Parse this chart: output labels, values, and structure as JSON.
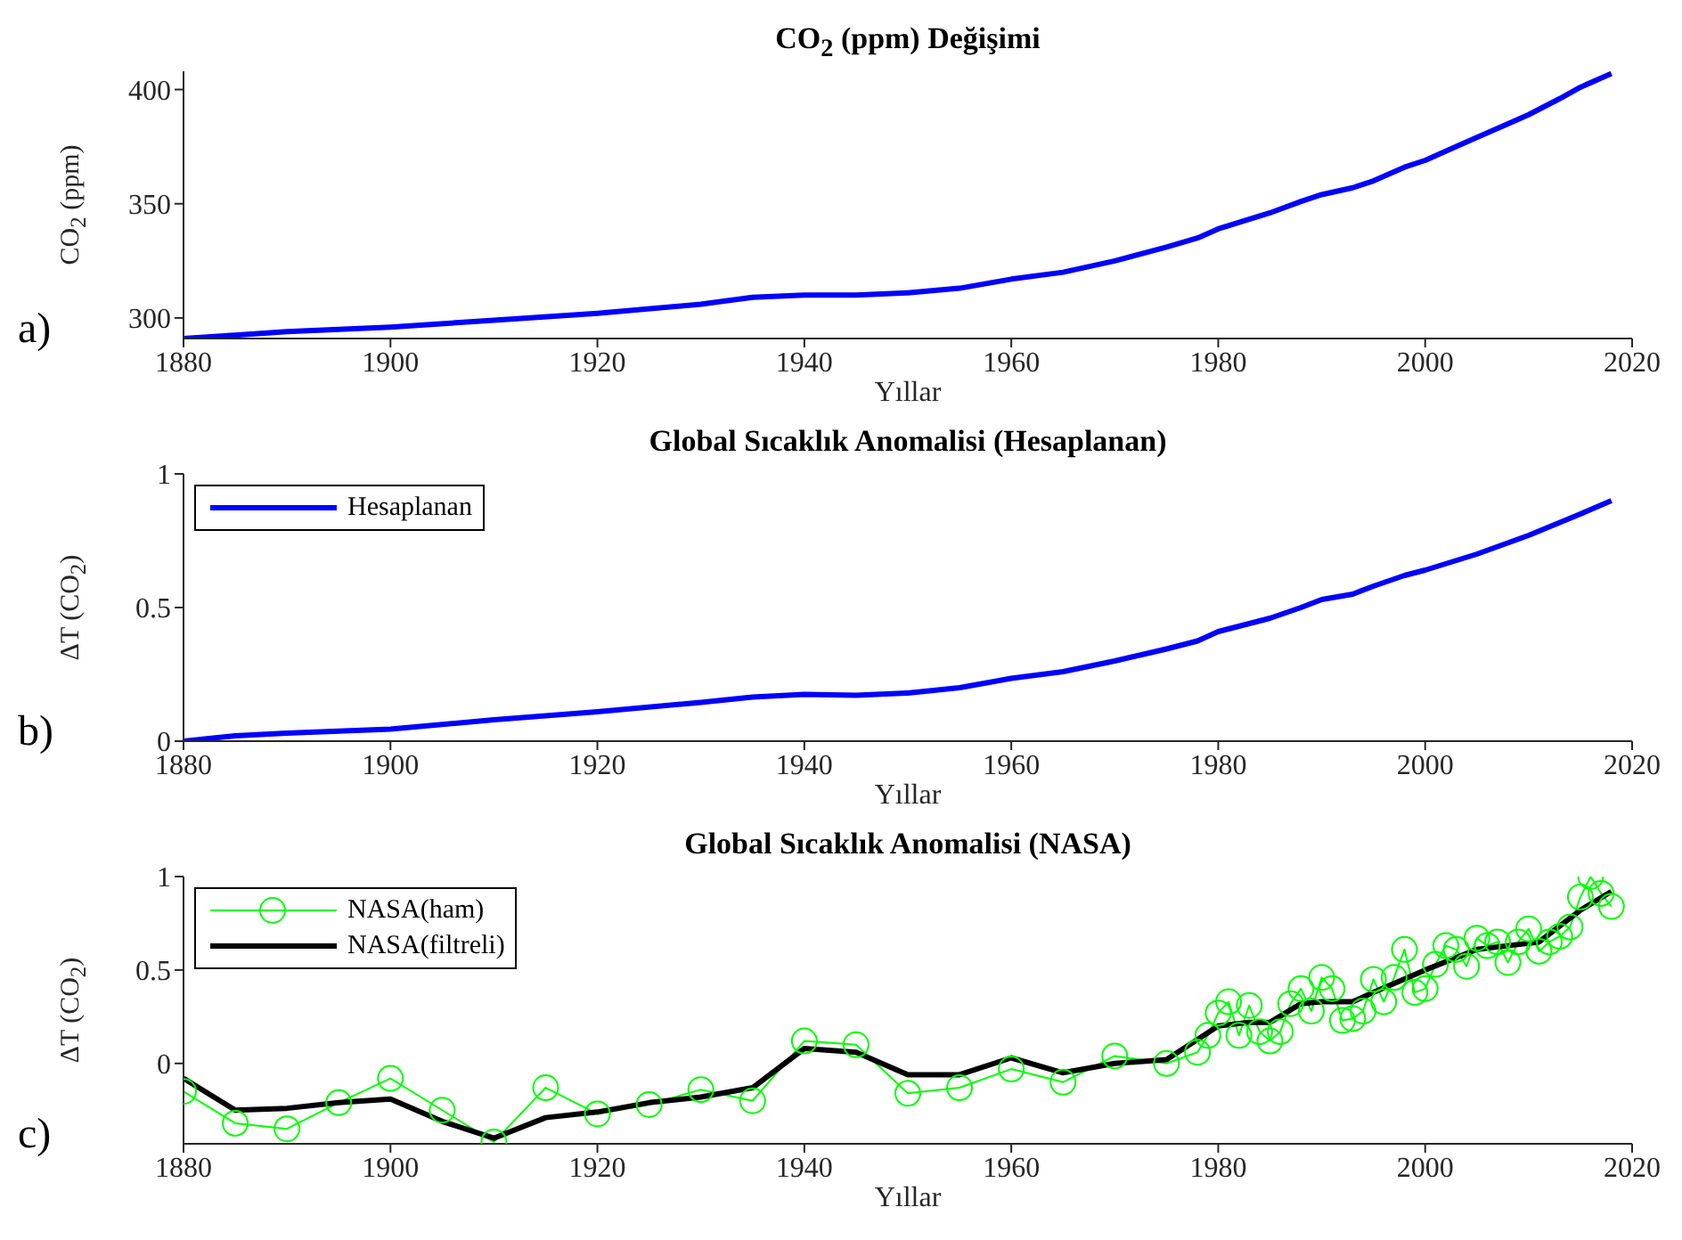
{
  "chart_data": [
    {
      "type": "line",
      "title": "CO$_{2}$ (ppm) Değişimi",
      "xlabel": "Yıllar",
      "ylabel": "CO$_{2}$ (ppm)",
      "annotations": [
        "a)"
      ],
      "xlim": [
        1880,
        2020
      ],
      "xticks": [
        1880,
        1900,
        1920,
        1940,
        1960,
        1980,
        2000,
        2020
      ],
      "ylim": [
        291,
        408
      ],
      "yticks": [
        300,
        350,
        400
      ],
      "series": [
        {
          "color": "#0000ff",
          "marker": "none",
          "x": [
            1880,
            1885,
            1890,
            1900,
            1910,
            1920,
            1930,
            1935,
            1940,
            1945,
            1950,
            1955,
            1960,
            1965,
            1970,
            1975,
            1978,
            1980,
            1985,
            1988,
            1990,
            1993,
            1995,
            1998,
            2000,
            2003,
            2005,
            2008,
            2010,
            2013,
            2015,
            2018
          ],
          "values": [
            291,
            292.5,
            294,
            296,
            299,
            302,
            306,
            309,
            310,
            310,
            311,
            313,
            317,
            320,
            325,
            331,
            335,
            339,
            346,
            351,
            354,
            357,
            360,
            366,
            369,
            375,
            379,
            385,
            389,
            396,
            401,
            407
          ]
        }
      ]
    },
    {
      "type": "line",
      "title": "Global Sıcaklık Anomalisi (Hesaplanan)",
      "xlabel": "Yıllar",
      "ylabel": "ΔT (CO$_{2}$)",
      "annotations": [
        "b)"
      ],
      "xlim": [
        1880,
        2020
      ],
      "xticks": [
        1880,
        1900,
        1920,
        1940,
        1960,
        1980,
        2000,
        2020
      ],
      "ylim": [
        0,
        1
      ],
      "yticks": [
        0,
        0.5,
        1
      ],
      "legend": "top left",
      "series": [
        {
          "name": "Hesaplanan",
          "color": "#0000ff",
          "marker": "none",
          "x": [
            1880,
            1885,
            1890,
            1900,
            1910,
            1920,
            1930,
            1935,
            1940,
            1945,
            1950,
            1955,
            1960,
            1965,
            1970,
            1975,
            1978,
            1980,
            1985,
            1988,
            1990,
            1993,
            1995,
            1998,
            2000,
            2005,
            2010,
            2015,
            2018
          ],
          "values": [
            0,
            0.02,
            0.03,
            0.045,
            0.08,
            0.11,
            0.145,
            0.165,
            0.175,
            0.172,
            0.18,
            0.2,
            0.235,
            0.26,
            0.3,
            0.345,
            0.375,
            0.41,
            0.46,
            0.5,
            0.53,
            0.55,
            0.58,
            0.62,
            0.64,
            0.7,
            0.77,
            0.85,
            0.9
          ]
        }
      ]
    },
    {
      "type": "line",
      "title": "Global Sıcaklık Anomalisi (NASA)",
      "xlabel": "Yıllar",
      "ylabel": "ΔT (CO$_{2}$)",
      "annotations": [
        "c)"
      ],
      "xlim": [
        1880,
        2020
      ],
      "xticks": [
        1880,
        1900,
        1920,
        1940,
        1960,
        1980,
        2000,
        2020
      ],
      "ylim": [
        -0.43,
        1
      ],
      "yticks": [
        0,
        0.5,
        1
      ],
      "legend": "top left",
      "series": [
        {
          "name": "NASA(ham)",
          "color": "#00ff00",
          "marker": "circle",
          "x": [
            1880,
            1885,
            1890,
            1895,
            1900,
            1905,
            1910,
            1915,
            1920,
            1925,
            1930,
            1935,
            1940,
            1945,
            1950,
            1955,
            1960,
            1965,
            1970,
            1975,
            1978,
            1979,
            1980,
            1981,
            1982,
            1983,
            1984,
            1985,
            1986,
            1987,
            1988,
            1989,
            1990,
            1991,
            1992,
            1993,
            1994,
            1995,
            1996,
            1997,
            1998,
            1999,
            2000,
            2001,
            2002,
            2003,
            2004,
            2005,
            2006,
            2007,
            2008,
            2009,
            2010,
            2011,
            2012,
            2013,
            2014,
            2015,
            2016,
            2017,
            2018
          ],
          "values": [
            -0.15,
            -0.32,
            -0.35,
            -0.21,
            -0.08,
            -0.25,
            -0.42,
            -0.13,
            -0.27,
            -0.22,
            -0.14,
            -0.2,
            0.12,
            0.1,
            -0.16,
            -0.13,
            -0.03,
            -0.1,
            0.04,
            0,
            0.06,
            0.15,
            0.27,
            0.33,
            0.15,
            0.31,
            0.17,
            0.12,
            0.17,
            0.32,
            0.4,
            0.28,
            0.46,
            0.4,
            0.23,
            0.24,
            0.28,
            0.45,
            0.33,
            0.46,
            0.61,
            0.38,
            0.4,
            0.53,
            0.63,
            0.61,
            0.52,
            0.67,
            0.63,
            0.65,
            0.54,
            0.65,
            0.72,
            0.6,
            0.65,
            0.68,
            0.73,
            0.89,
            1,
            0.91,
            0.84
          ]
        },
        {
          "name": "NASA(filtreli)",
          "color": "#000000",
          "marker": "none",
          "x": [
            1880,
            1885,
            1890,
            1895,
            1900,
            1905,
            1910,
            1915,
            1920,
            1925,
            1930,
            1935,
            1940,
            1945,
            1950,
            1955,
            1960,
            1965,
            1970,
            1975,
            1980,
            1983,
            1985,
            1988,
            1990,
            1993,
            1995,
            2000,
            2005,
            2008,
            2011,
            2015,
            2018
          ],
          "values": [
            -0.08,
            -0.25,
            -0.24,
            -0.21,
            -0.19,
            -0.31,
            -0.4,
            -0.29,
            -0.26,
            -0.21,
            -0.18,
            -0.13,
            0.08,
            0.06,
            -0.06,
            -0.06,
            0.03,
            -0.05,
            0,
            0.02,
            0.2,
            0.22,
            0.22,
            0.32,
            0.33,
            0.33,
            0.38,
            0.5,
            0.61,
            0.63,
            0.65,
            0.82,
            0.92
          ]
        }
      ]
    }
  ]
}
